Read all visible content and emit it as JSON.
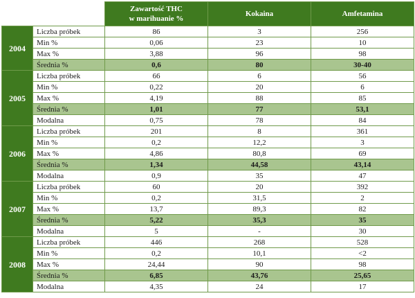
{
  "headers": {
    "thc_line1": "Zawartość THC",
    "thc_line2": "w marihuanie %",
    "cocaine": "Kokaina",
    "amphetamine": "Amfetamina"
  },
  "years": [
    {
      "year": "2004",
      "rows": [
        {
          "label": "Liczba próbek",
          "thc": "86",
          "cocaine": "3",
          "amphetamine": "256"
        },
        {
          "label": "Min %",
          "thc": "0,06",
          "cocaine": "23",
          "amphetamine": "10"
        },
        {
          "label": "Max %",
          "thc": "3,88",
          "cocaine": "96",
          "amphetamine": "98"
        },
        {
          "label": "Średnia %",
          "thc": "0,6",
          "cocaine": "80",
          "amphetamine": "30-40"
        }
      ]
    },
    {
      "year": "2005",
      "rows": [
        {
          "label": "Liczba próbek",
          "thc": "66",
          "cocaine": "6",
          "amphetamine": "56"
        },
        {
          "label": "Min %",
          "thc": "0,22",
          "cocaine": "20",
          "amphetamine": "6"
        },
        {
          "label": "Max %",
          "thc": "4,19",
          "cocaine": "88",
          "amphetamine": "85"
        },
        {
          "label": "Średnia %",
          "thc": "1,01",
          "cocaine": "77",
          "amphetamine": "53,1"
        },
        {
          "label": "Modalna",
          "thc": "0,75",
          "cocaine": "78",
          "amphetamine": "84"
        }
      ]
    },
    {
      "year": "2006",
      "rows": [
        {
          "label": "Liczba próbek",
          "thc": "201",
          "cocaine": "8",
          "amphetamine": "361"
        },
        {
          "label": "Min %",
          "thc": "0,2",
          "cocaine": "12,2",
          "amphetamine": "3"
        },
        {
          "label": "Max %",
          "thc": "4,86",
          "cocaine": "80,8",
          "amphetamine": "69"
        },
        {
          "label": "Średnia %",
          "thc": "1,34",
          "cocaine": "44,58",
          "amphetamine": "43,14"
        },
        {
          "label": "Modalna",
          "thc": "0,9",
          "cocaine": "35",
          "amphetamine": "47"
        }
      ]
    },
    {
      "year": "2007",
      "rows": [
        {
          "label": "Liczba próbek",
          "thc": "60",
          "cocaine": "20",
          "amphetamine": "392"
        },
        {
          "label": "Min %",
          "thc": "0,2",
          "cocaine": "31,5",
          "amphetamine": "2"
        },
        {
          "label": "Max %",
          "thc": "13,7",
          "cocaine": "89,3",
          "amphetamine": "82"
        },
        {
          "label": "Średnia %",
          "thc": "5,22",
          "cocaine": "35,3",
          "amphetamine": "35"
        },
        {
          "label": "Modalna",
          "thc": "5",
          "cocaine": "-",
          "amphetamine": "30"
        }
      ]
    },
    {
      "year": "2008",
      "rows": [
        {
          "label": "Liczba próbek",
          "thc": "446",
          "cocaine": "268",
          "amphetamine": "528"
        },
        {
          "label": "Min %",
          "thc": "0,2",
          "cocaine": "10,1",
          "amphetamine": "<2"
        },
        {
          "label": "Max %",
          "thc": "24,44",
          "cocaine": "90",
          "amphetamine": "98"
        },
        {
          "label": "Średnia %",
          "thc": "6,85",
          "cocaine": "43,76",
          "amphetamine": "25,65"
        },
        {
          "label": "Modalna",
          "thc": "4,35",
          "cocaine": "24",
          "amphetamine": "17"
        }
      ]
    }
  ]
}
